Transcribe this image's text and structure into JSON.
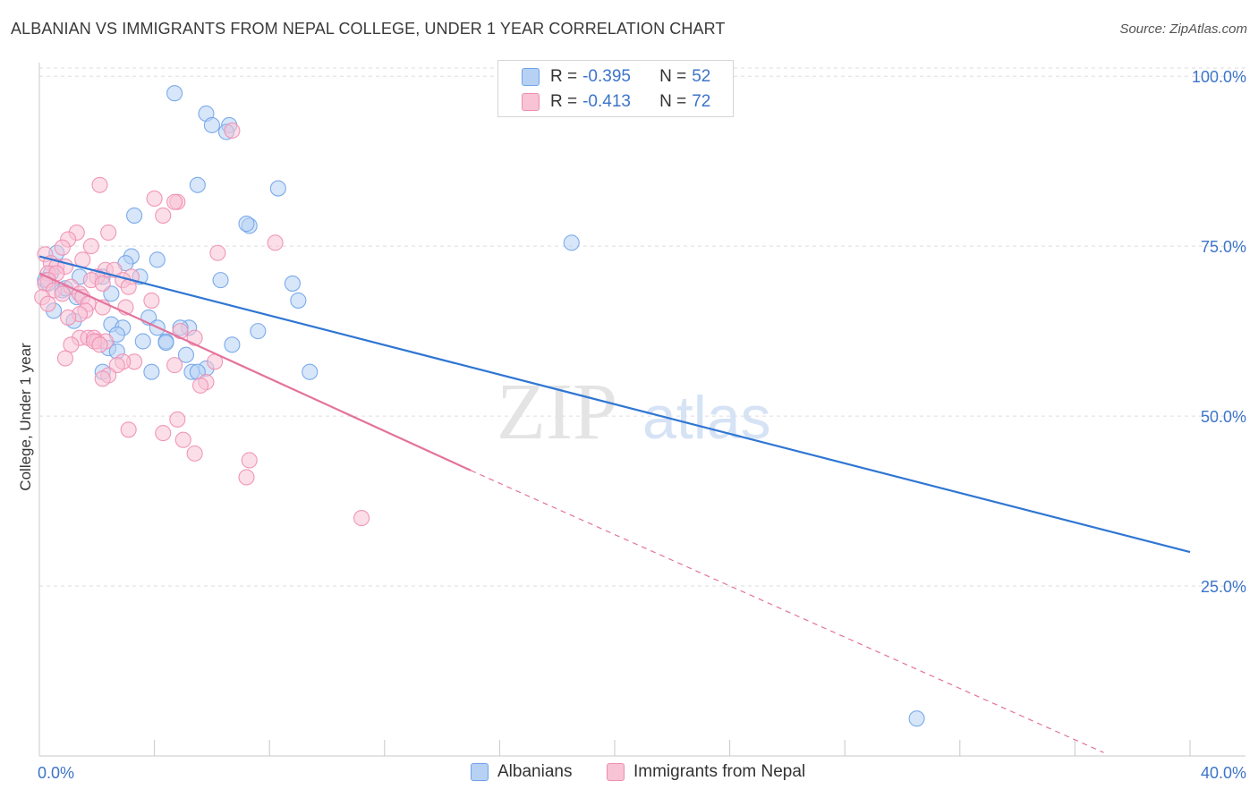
{
  "title": "ALBANIAN VS IMMIGRANTS FROM NEPAL COLLEGE, UNDER 1 YEAR CORRELATION CHART",
  "source": "Source: ZipAtlas.com",
  "watermark": {
    "zip": "ZIP",
    "atlas": "atlas"
  },
  "legend": {
    "r_label": "R =",
    "n_label": "N =",
    "series": [
      {
        "name": "Albanians",
        "r": "-0.395",
        "n": "52",
        "color": "#6fa3e8",
        "fill": "#b7d1f4",
        "line": "#2f76d3"
      },
      {
        "name": "Immigrants from Nepal",
        "r": "-0.413",
        "n": "72",
        "color": "#ef8db0",
        "fill": "#f7c3d5",
        "line": "#e4739c"
      }
    ]
  },
  "chart_data": {
    "type": "scatter",
    "title": "ALBANIAN VS IMMIGRANTS FROM NEPAL COLLEGE, UNDER 1 YEAR CORRELATION CHART",
    "xlabel": "",
    "ylabel": "College, Under 1 year",
    "xlim": [
      0,
      40
    ],
    "ylim": [
      0,
      102
    ],
    "x_ticks": [
      0,
      4,
      8,
      12,
      16,
      20,
      24,
      28,
      32,
      36,
      40
    ],
    "x_tick_labels": [
      {
        "value": 0,
        "label": "0.0%"
      },
      {
        "value": 40,
        "label": "40.0%"
      }
    ],
    "y_tick_labels": [
      {
        "value": 25,
        "label": "25.0%"
      },
      {
        "value": 50,
        "label": "50.0%"
      },
      {
        "value": 75,
        "label": "75.0%"
      },
      {
        "value": 100,
        "label": "100.0%"
      }
    ],
    "grid": true,
    "series": [
      {
        "name": "Albanians",
        "points": [
          [
            4.7,
            97.5
          ],
          [
            5.8,
            94.5
          ],
          [
            6.0,
            92.8
          ],
          [
            6.6,
            92.8
          ],
          [
            6.5,
            91.8
          ],
          [
            5.5,
            84.0
          ],
          [
            8.3,
            83.5
          ],
          [
            3.3,
            79.5
          ],
          [
            7.3,
            78.0
          ],
          [
            7.2,
            78.3
          ],
          [
            18.5,
            75.5
          ],
          [
            3.2,
            73.5
          ],
          [
            4.1,
            73.0
          ],
          [
            0.6,
            74.0
          ],
          [
            3.0,
            72.5
          ],
          [
            0.4,
            71.0
          ],
          [
            2.2,
            70.5
          ],
          [
            3.5,
            70.5
          ],
          [
            1.4,
            70.5
          ],
          [
            6.3,
            70.0
          ],
          [
            8.8,
            69.5
          ],
          [
            0.2,
            70.0
          ],
          [
            0.8,
            68.5
          ],
          [
            2.5,
            68.0
          ],
          [
            1.3,
            67.5
          ],
          [
            0.9,
            68.8
          ],
          [
            9.0,
            67.0
          ],
          [
            0.5,
            65.5
          ],
          [
            3.8,
            64.5
          ],
          [
            1.2,
            64.0
          ],
          [
            2.5,
            63.5
          ],
          [
            4.1,
            63.0
          ],
          [
            5.2,
            63.0
          ],
          [
            7.6,
            62.5
          ],
          [
            2.9,
            63.0
          ],
          [
            4.9,
            63.0
          ],
          [
            2.7,
            62.0
          ],
          [
            4.4,
            61.0
          ],
          [
            3.6,
            61.0
          ],
          [
            4.4,
            60.8
          ],
          [
            6.7,
            60.5
          ],
          [
            2.4,
            60.0
          ],
          [
            2.7,
            59.5
          ],
          [
            5.1,
            59.0
          ],
          [
            5.8,
            57.0
          ],
          [
            2.2,
            56.5
          ],
          [
            3.9,
            56.5
          ],
          [
            5.3,
            56.5
          ],
          [
            9.4,
            56.5
          ],
          [
            5.5,
            56.5
          ],
          [
            30.5,
            5.5
          ],
          [
            0.3,
            69.5
          ]
        ]
      },
      {
        "name": "Immigrants from Nepal",
        "points": [
          [
            6.7,
            92.0
          ],
          [
            2.1,
            84.0
          ],
          [
            4.0,
            82.0
          ],
          [
            4.8,
            81.5
          ],
          [
            4.7,
            81.5
          ],
          [
            4.3,
            79.5
          ],
          [
            2.4,
            77.0
          ],
          [
            1.3,
            77.0
          ],
          [
            1.0,
            76.0
          ],
          [
            8.2,
            75.5
          ],
          [
            1.8,
            75.0
          ],
          [
            0.8,
            74.8
          ],
          [
            6.2,
            74.0
          ],
          [
            0.2,
            73.8
          ],
          [
            1.5,
            73.0
          ],
          [
            0.4,
            72.5
          ],
          [
            0.6,
            72.0
          ],
          [
            0.9,
            72.0
          ],
          [
            2.3,
            71.5
          ],
          [
            2.6,
            71.5
          ],
          [
            0.3,
            71.0
          ],
          [
            0.6,
            71.0
          ],
          [
            2.0,
            70.5
          ],
          [
            3.2,
            70.5
          ],
          [
            1.8,
            70.0
          ],
          [
            0.3,
            70.0
          ],
          [
            2.9,
            70.0
          ],
          [
            0.2,
            69.5
          ],
          [
            2.2,
            69.5
          ],
          [
            3.1,
            69.0
          ],
          [
            1.1,
            69.0
          ],
          [
            0.5,
            68.5
          ],
          [
            1.4,
            68.0
          ],
          [
            0.8,
            68.0
          ],
          [
            1.5,
            67.5
          ],
          [
            0.1,
            67.5
          ],
          [
            0.3,
            66.5
          ],
          [
            1.7,
            66.5
          ],
          [
            3.9,
            67.0
          ],
          [
            2.2,
            66.0
          ],
          [
            3.0,
            66.0
          ],
          [
            1.6,
            65.5
          ],
          [
            1.4,
            65.0
          ],
          [
            1.0,
            64.5
          ],
          [
            4.9,
            62.5
          ],
          [
            5.4,
            61.5
          ],
          [
            1.4,
            61.5
          ],
          [
            1.7,
            61.5
          ],
          [
            1.9,
            61.5
          ],
          [
            2.0,
            61.0
          ],
          [
            1.1,
            60.5
          ],
          [
            2.3,
            61.0
          ],
          [
            1.9,
            61.0
          ],
          [
            2.1,
            60.5
          ],
          [
            0.9,
            58.5
          ],
          [
            6.1,
            58.0
          ],
          [
            4.7,
            57.5
          ],
          [
            3.3,
            58.0
          ],
          [
            2.9,
            58.0
          ],
          [
            2.7,
            57.5
          ],
          [
            2.4,
            56.0
          ],
          [
            2.2,
            55.5
          ],
          [
            5.8,
            55.0
          ],
          [
            5.6,
            54.5
          ],
          [
            4.8,
            49.5
          ],
          [
            3.1,
            48.0
          ],
          [
            4.3,
            47.5
          ],
          [
            5.0,
            46.5
          ],
          [
            5.4,
            44.5
          ],
          [
            7.3,
            43.5
          ],
          [
            7.2,
            41.0
          ],
          [
            11.2,
            35.0
          ]
        ]
      }
    ],
    "trend_lines": [
      {
        "series": "Albanians",
        "from": [
          0,
          73.5
        ],
        "to": [
          40,
          30.0
        ],
        "style": "solid"
      },
      {
        "series": "Immigrants from Nepal",
        "from": [
          0,
          71.0
        ],
        "to": [
          15.0,
          42.0
        ],
        "style": "solid"
      },
      {
        "series": "Immigrants from Nepal",
        "from": [
          15.0,
          42.0
        ],
        "to": [
          37.0,
          0.5
        ],
        "style": "dashed"
      }
    ]
  }
}
